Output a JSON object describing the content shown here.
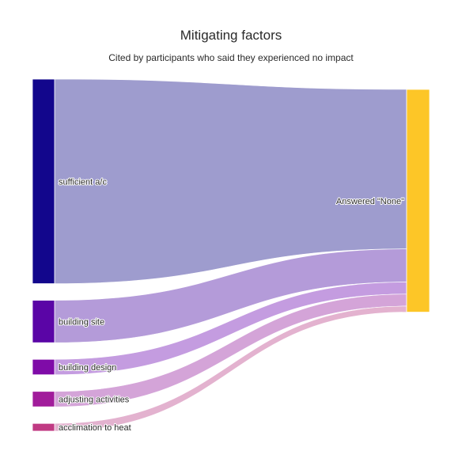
{
  "chart_data": {
    "type": "sankey",
    "title": "Mitigating factors",
    "subtitle": "Cited by participants who said they experienced no impact",
    "target": {
      "label": "Answered \"None\"",
      "color": "#fdc627"
    },
    "sources": [
      {
        "label": "sufficient a/c",
        "value": 53,
        "color": "#12068c",
        "link_color": "#9e9cce"
      },
      {
        "label": "building site",
        "value": 11,
        "color": "#5a05a6",
        "link_color": "#b49bd9"
      },
      {
        "label": "building design",
        "value": 4,
        "color": "#7f0ba8",
        "link_color": "#c49ce0"
      },
      {
        "label": "adjusting activities",
        "value": 4,
        "color": "#a11c9b",
        "link_color": "#d4a4d8"
      },
      {
        "label": "acclimation to heat",
        "value": 2,
        "color": "#c03a83",
        "link_color": "#e3b2cf"
      }
    ]
  }
}
